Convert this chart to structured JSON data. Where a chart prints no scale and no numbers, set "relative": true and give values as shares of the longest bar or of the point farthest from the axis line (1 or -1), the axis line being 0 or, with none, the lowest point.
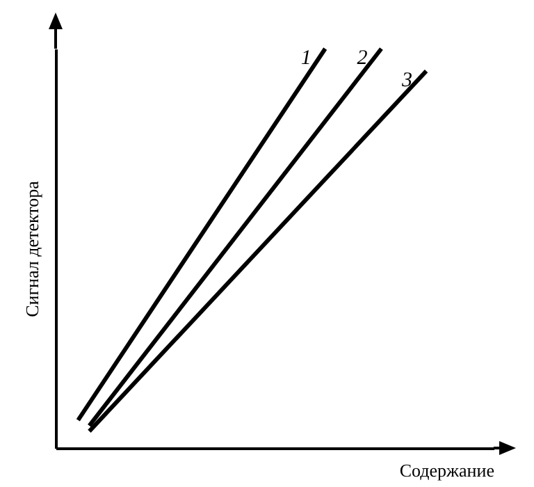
{
  "chart_data": {
    "type": "line",
    "relative": true,
    "xlabel": "Содержание",
    "ylabel": "Сигнал детектора",
    "legend": false,
    "marker": "none",
    "line_style": "solid",
    "categories": [
      null,
      null,
      null,
      null,
      null,
      null,
      null,
      null,
      null,
      null,
      null,
      null,
      null,
      null,
      null,
      null,
      null,
      null,
      null,
      null,
      null,
      null,
      null,
      null,
      null,
      null,
      null,
      null,
      null,
      null,
      null,
      null,
      null,
      null,
      null,
      null,
      null,
      null,
      null,
      null
    ],
    "series": [
      {
        "name": "1",
        "color": "#000000",
        "values": [
          null,
          null,
          0.07,
          null,
          null,
          null,
          null,
          null,
          null,
          null,
          null,
          null,
          null,
          null,
          null,
          null,
          null,
          null,
          null,
          null,
          null,
          null,
          null,
          null,
          1,
          null,
          null,
          null,
          null,
          null,
          null,
          null,
          null,
          null,
          null,
          null,
          null,
          null,
          null,
          null
        ]
      },
      {
        "name": "2",
        "color": "#000000",
        "values": [
          null,
          null,
          null,
          0.056,
          null,
          null,
          null,
          null,
          null,
          null,
          null,
          null,
          null,
          null,
          null,
          null,
          null,
          null,
          null,
          null,
          null,
          null,
          null,
          null,
          null,
          null,
          null,
          null,
          null,
          1,
          null,
          null,
          null,
          null,
          null,
          null,
          null,
          null,
          null,
          null
        ]
      },
      {
        "name": "3",
        "color": "#000000",
        "values": [
          null,
          null,
          null,
          0.042,
          null,
          null,
          null,
          null,
          null,
          null,
          null,
          null,
          null,
          null,
          null,
          null,
          null,
          null,
          null,
          null,
          null,
          null,
          null,
          null,
          null,
          null,
          null,
          null,
          null,
          null,
          null,
          null,
          null,
          0.944,
          null,
          null,
          null,
          null,
          null,
          null
        ]
      }
    ]
  }
}
